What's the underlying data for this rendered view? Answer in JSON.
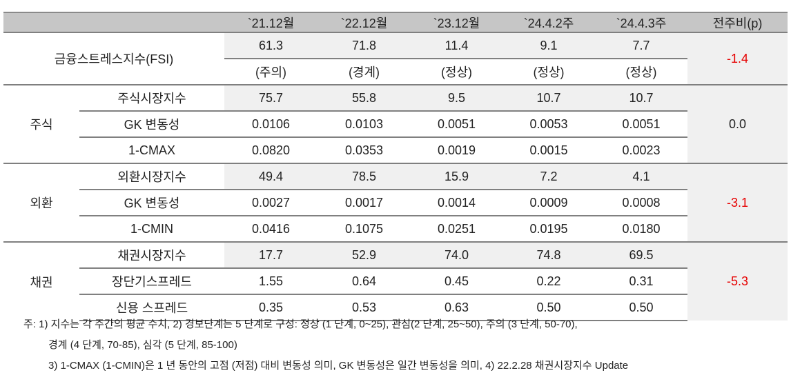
{
  "header": {
    "blank": "",
    "columns": [
      "`21.12월",
      "`22.12월",
      "`23.12월",
      "`24.4.2주",
      "`24.4.3주"
    ],
    "delta": "전주비(p)"
  },
  "fsi": {
    "label": "금융스트레스지수(FSI)",
    "values": [
      "61.3",
      "71.8",
      "11.4",
      "9.1",
      "7.7"
    ],
    "levels": [
      "(주의)",
      "(경계)",
      "(정상)",
      "(정상)",
      "(정상)"
    ],
    "delta": "-1.4"
  },
  "groups": [
    {
      "label": "주식",
      "delta": "0.0",
      "rows": [
        {
          "label": "주식시장지수",
          "values": [
            "75.7",
            "55.8",
            "9.5",
            "10.7",
            "10.7"
          ]
        },
        {
          "label": "GK 변동성",
          "values": [
            "0.0106",
            "0.0103",
            "0.0051",
            "0.0053",
            "0.0051"
          ]
        },
        {
          "label": "1-CMAX",
          "values": [
            "0.0820",
            "0.0353",
            "0.0019",
            "0.0015",
            "0.0023"
          ]
        }
      ]
    },
    {
      "label": "외환",
      "delta": "-3.1",
      "rows": [
        {
          "label": "외환시장지수",
          "values": [
            "49.4",
            "78.5",
            "15.9",
            "7.2",
            "4.1"
          ]
        },
        {
          "label": "GK 변동성",
          "values": [
            "0.0027",
            "0.0017",
            "0.0014",
            "0.0009",
            "0.0008"
          ]
        },
        {
          "label": "1-CMIN",
          "values": [
            "0.0416",
            "0.1075",
            "0.0251",
            "0.0195",
            "0.0180"
          ]
        }
      ]
    },
    {
      "label": "채권",
      "delta": "-5.3",
      "rows": [
        {
          "label": "채권시장지수",
          "values": [
            "17.7",
            "52.9",
            "74.0",
            "74.8",
            "69.5"
          ]
        },
        {
          "label": "장단기스프레드",
          "values": [
            "1.55",
            "0.64",
            "0.45",
            "0.22",
            "0.31"
          ]
        },
        {
          "label": "신용 스프레드",
          "values": [
            "0.35",
            "0.53",
            "0.63",
            "0.50",
            "0.50"
          ]
        }
      ]
    }
  ],
  "notes": [
    "주: 1) 지수는 각 주간의 평균 수치, 2) 경보단계는 5 단계로 구성: 정상 (1 단계, 0~25), 관심(2 단계, 25~50), 주의 (3 단계, 50-70),",
    "경계 (4 단계, 70-85), 심각 (5 단계, 85-100)",
    "3) 1-CMAX (1-CMIN)은 1 년 동안의 고점 (저점) 대비 변동성 의미, GK 변동성은 일간 변동성을 의미, 4) 22.2.28 채권시장지수 Update"
  ],
  "colors": {
    "header_bg": "#c6c6c6",
    "highlight_bg": "#f0f0f0",
    "negative": "#e60000",
    "rule": "#7f7f7f"
  }
}
